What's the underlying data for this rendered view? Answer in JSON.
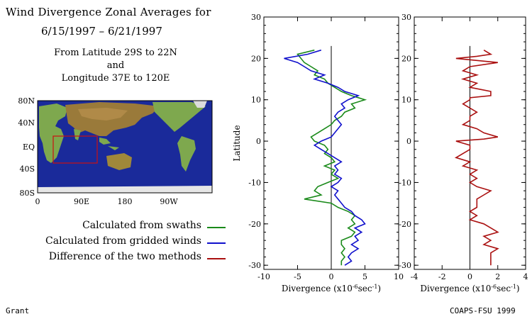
{
  "header": {
    "title": "Wind Divergence Zonal Averages for",
    "dates": "6/15/1997 – 6/21/1997",
    "region_line1": "From Latitude 29S to 22N",
    "region_line2": "and",
    "region_line3": "Longitude 37E to 120E"
  },
  "map": {
    "lat_labels": [
      "80N",
      "40N",
      "EQ",
      "40S",
      "80S"
    ],
    "lon_labels": [
      "0",
      "90E",
      "180",
      "90W"
    ],
    "ocean_color": "#1a2a9a",
    "box_color": "#cc1111"
  },
  "legend": [
    {
      "label": "Calculated from swaths",
      "color": "#1a8a1a"
    },
    {
      "label": "Calculated from gridded winds",
      "color": "#1010cc"
    },
    {
      "label": "Difference of the two methods",
      "color": "#aa1010"
    }
  ],
  "footer": {
    "left": "Grant",
    "right": "COAPS-FSU 1999"
  },
  "chart_data": [
    {
      "type": "line",
      "ylabel": "Latitude",
      "xlabel_main": "Divergence (x10",
      "xlabel_exp1": "-6",
      "xlabel_mid": "sec",
      "xlabel_exp2": "-1",
      "xlabel_end": ")",
      "xlim": [
        -10,
        10
      ],
      "ylim": [
        -31,
        30
      ],
      "xticks": [
        -10,
        -5,
        0,
        5,
        10
      ],
      "yticks": [
        -30,
        -20,
        -10,
        0,
        10,
        20,
        30
      ],
      "series": [
        {
          "name": "Calculated from swaths",
          "color": "#1a8a1a",
          "points": [
            [
              -2.5,
              22
            ],
            [
              -5,
              21
            ],
            [
              -4,
              19
            ],
            [
              -3,
              18
            ],
            [
              -2,
              17
            ],
            [
              -2.5,
              16
            ],
            [
              -1,
              15
            ],
            [
              -0.5,
              14
            ],
            [
              0.5,
              13
            ],
            [
              1.5,
              12
            ],
            [
              3,
              11
            ],
            [
              5,
              10
            ],
            [
              3,
              9
            ],
            [
              3.5,
              8
            ],
            [
              2,
              7
            ],
            [
              1.5,
              6
            ],
            [
              0.5,
              5
            ],
            [
              0,
              4
            ],
            [
              -1,
              3
            ],
            [
              -2,
              2
            ],
            [
              -3,
              1
            ],
            [
              -2.5,
              0
            ],
            [
              -1,
              -1
            ],
            [
              -0.5,
              -2
            ],
            [
              -1,
              -3
            ],
            [
              0,
              -4
            ],
            [
              0.5,
              -5
            ],
            [
              -1,
              -6
            ],
            [
              0.5,
              -7
            ],
            [
              0,
              -8
            ],
            [
              1,
              -9
            ],
            [
              -0.5,
              -10
            ],
            [
              -2,
              -11
            ],
            [
              -2.5,
              -12
            ],
            [
              -1.5,
              -13
            ],
            [
              -4,
              -14
            ],
            [
              0,
              -15
            ],
            [
              1,
              -16
            ],
            [
              2.5,
              -17
            ],
            [
              3.5,
              -18
            ],
            [
              3,
              -19
            ],
            [
              3.5,
              -20
            ],
            [
              2.5,
              -21
            ],
            [
              3.5,
              -22
            ],
            [
              3,
              -23
            ],
            [
              1.5,
              -24
            ],
            [
              1.5,
              -25
            ],
            [
              2,
              -26
            ],
            [
              1.5,
              -27
            ],
            [
              2,
              -28
            ],
            [
              1.5,
              -29
            ],
            [
              1.5,
              -30
            ]
          ]
        },
        {
          "name": "Calculated from gridded winds",
          "color": "#1010cc",
          "points": [
            [
              -1.5,
              22
            ],
            [
              -3.5,
              21
            ],
            [
              -7,
              20
            ],
            [
              -5,
              19
            ],
            [
              -4,
              18
            ],
            [
              -3,
              17
            ],
            [
              -1,
              16
            ],
            [
              -2.5,
              15
            ],
            [
              -0.5,
              14
            ],
            [
              1,
              13
            ],
            [
              2,
              12
            ],
            [
              4,
              11
            ],
            [
              2.5,
              10
            ],
            [
              1.5,
              9
            ],
            [
              2,
              8
            ],
            [
              1,
              7
            ],
            [
              0.5,
              6
            ],
            [
              1,
              5
            ],
            [
              1.5,
              4
            ],
            [
              1,
              3
            ],
            [
              0.5,
              2
            ],
            [
              0,
              1
            ],
            [
              -1.5,
              0
            ],
            [
              -2.5,
              -1
            ],
            [
              -1.5,
              -2
            ],
            [
              -0.5,
              -3
            ],
            [
              0.5,
              -4
            ],
            [
              1.5,
              -5
            ],
            [
              0.5,
              -6
            ],
            [
              1,
              -7
            ],
            [
              0.5,
              -8
            ],
            [
              1.5,
              -9
            ],
            [
              1,
              -10
            ],
            [
              0,
              -11
            ],
            [
              1,
              -12
            ],
            [
              0.5,
              -13
            ],
            [
              1,
              -14
            ],
            [
              1.5,
              -15
            ],
            [
              2,
              -16
            ],
            [
              3,
              -17
            ],
            [
              3.5,
              -18
            ],
            [
              4.5,
              -19
            ],
            [
              5,
              -20
            ],
            [
              3.5,
              -21
            ],
            [
              4.5,
              -22
            ],
            [
              3.5,
              -23
            ],
            [
              4,
              -24
            ],
            [
              3,
              -25
            ],
            [
              4,
              -26
            ],
            [
              3,
              -27
            ],
            [
              2.5,
              -28
            ],
            [
              3,
              -29
            ],
            [
              2,
              -30
            ]
          ]
        }
      ]
    },
    {
      "type": "line",
      "xlim": [
        -4,
        4
      ],
      "ylim": [
        -31,
        30
      ],
      "xticks": [
        -4,
        -2,
        0,
        2,
        4
      ],
      "yticks": [
        -30,
        -20,
        -10,
        0,
        10,
        20,
        30
      ],
      "series": [
        {
          "name": "Difference of the two methods",
          "color": "#aa1010",
          "points": [
            [
              1,
              22
            ],
            [
              1.5,
              21
            ],
            [
              0.5,
              20.5
            ],
            [
              -1,
              20
            ],
            [
              2,
              19
            ],
            [
              0,
              18
            ],
            [
              -0.5,
              17
            ],
            [
              0.5,
              16
            ],
            [
              -0.5,
              15
            ],
            [
              0.5,
              14
            ],
            [
              0,
              13
            ],
            [
              1.5,
              12
            ],
            [
              1.5,
              11
            ],
            [
              0,
              10.5
            ],
            [
              0,
              10
            ],
            [
              -0.5,
              9
            ],
            [
              0,
              8
            ],
            [
              0.5,
              7
            ],
            [
              0,
              6
            ],
            [
              0,
              5
            ],
            [
              -0.5,
              4
            ],
            [
              0.5,
              3
            ],
            [
              1,
              2
            ],
            [
              2,
              1
            ],
            [
              1,
              0.5
            ],
            [
              -1,
              0
            ],
            [
              0,
              -1
            ],
            [
              0,
              -2
            ],
            [
              -0.5,
              -3
            ],
            [
              -1,
              -4
            ],
            [
              0,
              -5
            ],
            [
              -0.5,
              -6
            ],
            [
              0.5,
              -7
            ],
            [
              0,
              -8
            ],
            [
              0.5,
              -9
            ],
            [
              0,
              -10
            ],
            [
              0.5,
              -11
            ],
            [
              1.5,
              -12
            ],
            [
              1,
              -13
            ],
            [
              0.5,
              -14
            ],
            [
              0.5,
              -15
            ],
            [
              0.5,
              -16
            ],
            [
              0,
              -17
            ],
            [
              0.5,
              -18
            ],
            [
              0,
              -19
            ],
            [
              1,
              -20
            ],
            [
              1.5,
              -21
            ],
            [
              2,
              -22
            ],
            [
              1,
              -23
            ],
            [
              1.5,
              -24
            ],
            [
              1,
              -25
            ],
            [
              2,
              -26
            ],
            [
              1.5,
              -27
            ],
            [
              1.5,
              -28
            ],
            [
              1.5,
              -29
            ],
            [
              1.5,
              -30
            ]
          ]
        }
      ]
    }
  ]
}
